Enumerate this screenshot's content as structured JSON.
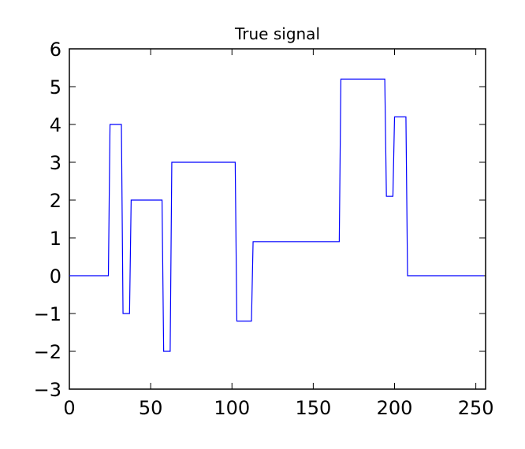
{
  "chart_data": {
    "type": "line",
    "title": "True signal",
    "x": [
      0,
      24,
      25,
      32,
      33,
      37,
      38,
      57,
      58,
      62,
      63,
      102,
      103,
      112,
      113,
      166,
      167,
      194,
      195,
      199,
      200,
      207,
      208,
      255
    ],
    "series": [
      {
        "color": "#0000ff",
        "values": [
          0,
          0,
          4,
          4,
          -1,
          -1,
          2,
          2,
          -2,
          -2,
          3,
          3,
          -1.2,
          -1.2,
          0.9,
          0.9,
          5.2,
          5.2,
          2.1,
          2.1,
          4.2,
          4.2,
          0,
          0
        ]
      }
    ],
    "xlim": [
      0,
      256
    ],
    "xticks": [
      0,
      50,
      100,
      150,
      200,
      250
    ],
    "ylim": [
      -3,
      6
    ],
    "yticks": [
      {
        "value": -3,
        "label": "−3"
      },
      {
        "value": -2,
        "label": "−2"
      },
      {
        "value": -1,
        "label": "−1"
      },
      0,
      1,
      2,
      3,
      4,
      5,
      6
    ]
  }
}
